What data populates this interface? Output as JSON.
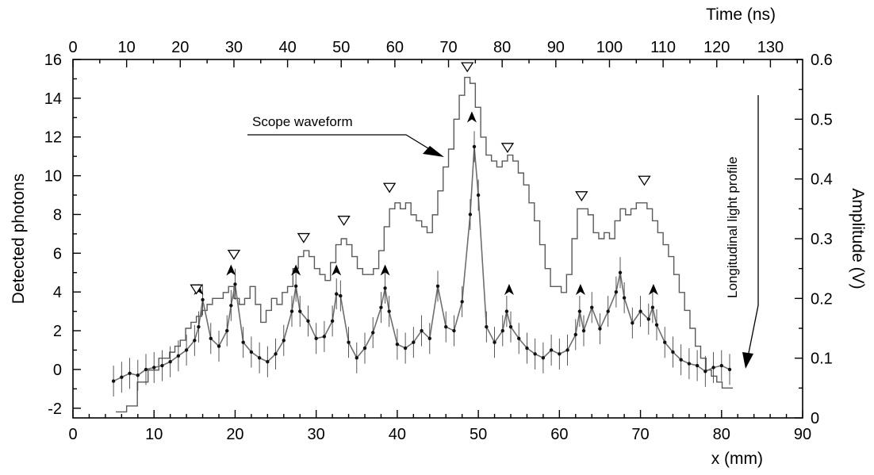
{
  "chart_data": {
    "type": "line",
    "axes": {
      "left": {
        "label": "Detected photons",
        "range": [
          -2.5,
          16
        ],
        "ticks": [
          -2,
          0,
          2,
          4,
          6,
          8,
          10,
          12,
          14,
          16
        ],
        "tick_labels": [
          "-2",
          "0",
          "2",
          "4",
          "6",
          "8",
          "10",
          "12",
          "14",
          "16"
        ]
      },
      "right": {
        "label": "Amplitude (V)",
        "range": [
          0,
          0.6
        ],
        "ticks": [
          0,
          0.1,
          0.2,
          0.3,
          0.4,
          0.5,
          0.6
        ],
        "tick_labels": [
          "0",
          "0.1",
          "0.2",
          "0.3",
          "0.4",
          "0.5",
          "0.6"
        ]
      },
      "bottom": {
        "label": "x (mm)",
        "range": [
          0,
          90
        ],
        "ticks": [
          0,
          10,
          20,
          30,
          40,
          50,
          60,
          70,
          80,
          90
        ],
        "tick_labels": [
          "0",
          "10",
          "20",
          "30",
          "40",
          "50",
          "60",
          "70",
          "80",
          "90"
        ]
      },
      "top": {
        "label": "Time (ns)",
        "range": [
          0,
          136
        ],
        "ticks": [
          0,
          10,
          20,
          30,
          40,
          50,
          60,
          70,
          80,
          90,
          100,
          110,
          120,
          130
        ],
        "tick_labels": [
          "0",
          "10",
          "20",
          "30",
          "40",
          "50",
          "60",
          "70",
          "80",
          "90",
          "100",
          "110",
          "120",
          "130"
        ]
      }
    },
    "series": [
      {
        "name": "Longitudinal light profile",
        "axis": "left/bottom",
        "x": [
          5,
          6,
          7,
          8,
          9,
          10,
          11,
          12,
          13,
          14,
          15,
          15.5,
          16,
          17,
          18,
          19,
          19.5,
          20,
          21,
          22,
          23,
          24,
          25,
          26,
          27,
          27.5,
          28,
          29,
          30,
          31,
          32,
          32.5,
          33,
          34,
          35,
          36,
          37,
          38,
          38.5,
          39,
          40,
          41,
          42,
          43,
          44,
          45,
          46,
          47,
          48,
          49,
          49.5,
          50,
          51,
          52,
          53,
          53.5,
          54,
          55,
          56,
          57,
          58,
          59,
          60,
          61,
          62,
          62.5,
          63,
          64,
          65,
          66,
          67,
          67.5,
          68,
          69,
          70,
          71,
          71.5,
          72,
          73,
          74,
          75,
          76,
          77,
          78,
          79,
          80,
          81
        ],
        "values": [
          -0.6,
          -0.4,
          -0.2,
          -0.3,
          0.0,
          0.1,
          0.2,
          0.4,
          0.7,
          1.0,
          1.5,
          2.2,
          3.6,
          1.6,
          1.2,
          2.0,
          3.3,
          4.4,
          1.4,
          0.9,
          0.6,
          0.4,
          0.8,
          1.5,
          3.0,
          4.3,
          3.0,
          2.5,
          1.6,
          1.7,
          2.5,
          3.9,
          3.8,
          1.4,
          0.6,
          1.1,
          1.9,
          3.2,
          4.2,
          3.0,
          1.3,
          1.1,
          1.4,
          2.0,
          1.6,
          4.3,
          2.2,
          2.0,
          3.5,
          8.0,
          11.5,
          9.0,
          2.2,
          1.4,
          2.0,
          3.0,
          2.2,
          1.6,
          1.1,
          0.8,
          0.6,
          1.0,
          0.8,
          1.0,
          1.8,
          3.0,
          2.0,
          3.2,
          2.1,
          3.0,
          4.0,
          5.0,
          3.7,
          2.4,
          3.0,
          2.6,
          3.2,
          2.3,
          1.4,
          0.9,
          0.5,
          0.3,
          0.2,
          -0.1,
          0.1,
          0.2,
          0.0
        ]
      },
      {
        "name": "Scope waveform",
        "axis": "right/top",
        "x": [
          8,
          10,
          12,
          14,
          16,
          18,
          19,
          20,
          21,
          22,
          23,
          24,
          25,
          26,
          27,
          28,
          29,
          30,
          31,
          32,
          33,
          34,
          35,
          36,
          37,
          38,
          39,
          40,
          41,
          42,
          43,
          44,
          45,
          46,
          47,
          48,
          49,
          50,
          51,
          52,
          53,
          54,
          55,
          56,
          57,
          58,
          59,
          60,
          61,
          62,
          63,
          64,
          65,
          66,
          67,
          68,
          69,
          70,
          71,
          72,
          73,
          74,
          75,
          76,
          77,
          78,
          79,
          80,
          81,
          82,
          83,
          84,
          85,
          86,
          87,
          88,
          89,
          90,
          91,
          92,
          93,
          94,
          95,
          96,
          97,
          98,
          99,
          100,
          101,
          102,
          103,
          104,
          105,
          106,
          107,
          108,
          109,
          110,
          111,
          112,
          113,
          114,
          115,
          116,
          117,
          118,
          119,
          120,
          121,
          122
        ],
        "values": [
          0.01,
          0.02,
          0.06,
          0.08,
          0.1,
          0.11,
          0.12,
          0.13,
          0.15,
          0.16,
          0.17,
          0.18,
          0.19,
          0.2,
          0.2,
          0.21,
          0.22,
          0.2,
          0.19,
          0.2,
          0.22,
          0.19,
          0.16,
          0.18,
          0.2,
          0.19,
          0.21,
          0.22,
          0.25,
          0.27,
          0.28,
          0.27,
          0.25,
          0.24,
          0.23,
          0.26,
          0.29,
          0.3,
          0.29,
          0.27,
          0.25,
          0.24,
          0.24,
          0.25,
          0.28,
          0.32,
          0.35,
          0.36,
          0.35,
          0.36,
          0.34,
          0.33,
          0.32,
          0.31,
          0.34,
          0.38,
          0.42,
          0.45,
          0.5,
          0.54,
          0.57,
          0.56,
          0.52,
          0.47,
          0.44,
          0.43,
          0.42,
          0.43,
          0.44,
          0.43,
          0.41,
          0.39,
          0.36,
          0.33,
          0.29,
          0.25,
          0.22,
          0.22,
          0.21,
          0.24,
          0.3,
          0.35,
          0.35,
          0.34,
          0.31,
          0.3,
          0.31,
          0.3,
          0.33,
          0.35,
          0.34,
          0.35,
          0.36,
          0.36,
          0.35,
          0.33,
          0.31,
          0.29,
          0.27,
          0.24,
          0.21,
          0.18,
          0.15,
          0.12,
          0.1,
          0.08,
          0.07,
          0.06,
          0.05,
          0.05
        ]
      }
    ],
    "markers": {
      "light_profile_peaks_x_mm": [
        15.5,
        19.5,
        27.5,
        32.5,
        38.5,
        49.2,
        53.8,
        62.6,
        71.6
      ],
      "light_profile_peaks_y": [
        3.6,
        4.6,
        4.6,
        4.6,
        4.6,
        12.5,
        3.6,
        3.6,
        3.6
      ],
      "scope_peaks_t_ns": [
        23,
        30,
        43,
        50.5,
        59,
        73.5,
        81,
        94.8,
        106.5
      ],
      "scope_peaks_v": [
        0.2,
        0.258,
        0.286,
        0.315,
        0.37,
        0.572,
        0.437,
        0.356,
        0.382
      ]
    },
    "annotations": [
      {
        "text": "Scope waveform"
      },
      {
        "text": "Longitudinal light profile"
      }
    ]
  }
}
